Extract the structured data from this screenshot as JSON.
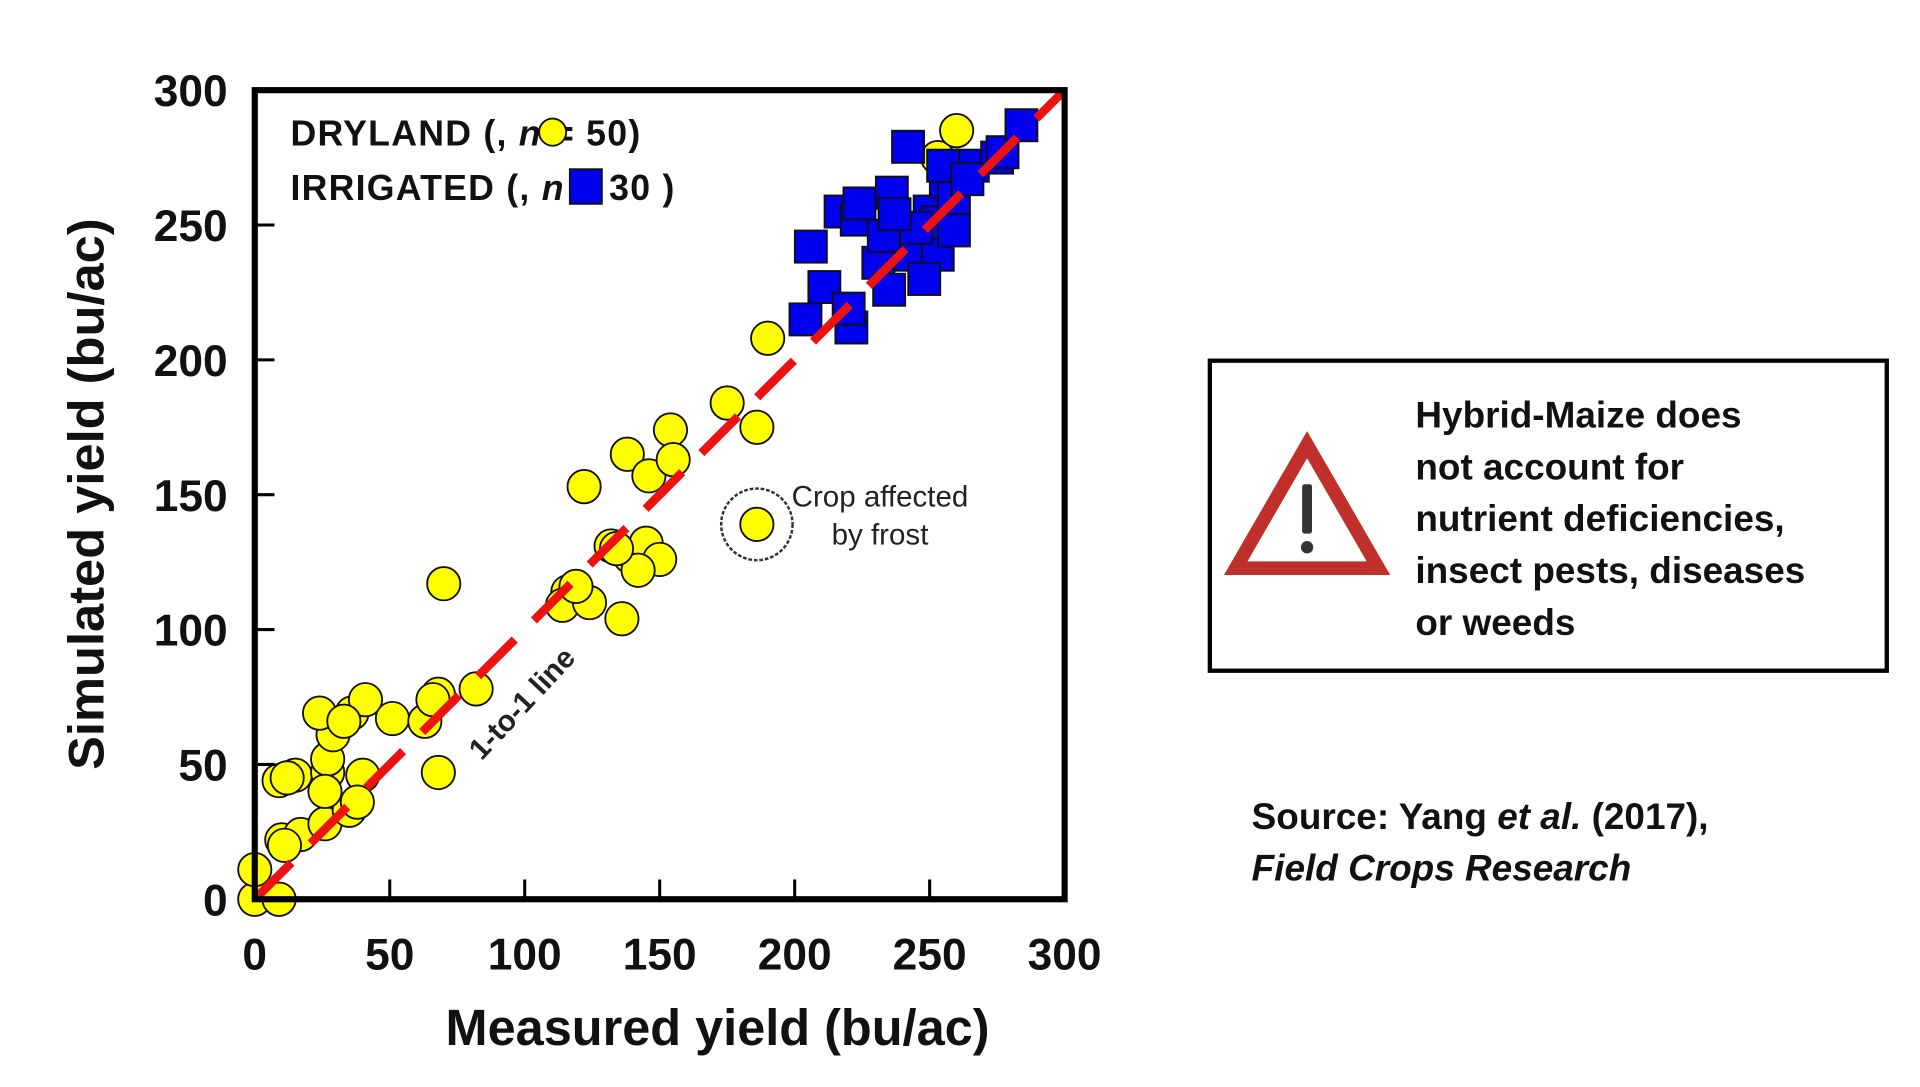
{
  "chart_data": {
    "type": "scatter",
    "xlabel": "Measured yield (bu/ac)",
    "ylabel": "Simulated yield (bu/ac)",
    "xlim": [
      0,
      300
    ],
    "ylim": [
      0,
      300
    ],
    "xticks": [
      "0",
      "50",
      "100",
      "150",
      "200",
      "250",
      "300"
    ],
    "yticks": [
      "0",
      "50",
      "100",
      "150",
      "200",
      "250",
      "300"
    ],
    "grid": false,
    "legend_position": "top-left",
    "legend": {
      "dryland": {
        "name": "DRYLAND",
        "n_label": "n",
        "n_value": "= 50)"
      },
      "irrigated": {
        "name": "IRRIGATED",
        "n_label": "n",
        "n_value": "= 30 )"
      }
    },
    "colors": {
      "dryland": "#ffff00",
      "irrigated": "#0000ee",
      "one_to_one": "#ee1111"
    },
    "one_to_one_label": "1-to-1 line",
    "annotation": {
      "line1": "Crop affected",
      "line2": "by frost",
      "x": 186,
      "y": 139
    },
    "series": [
      {
        "name": "DRYLAND",
        "marker": "circle",
        "points": [
          [
            0,
            0
          ],
          [
            9,
            0
          ],
          [
            0,
            11
          ],
          [
            10,
            22
          ],
          [
            17,
            24
          ],
          [
            26,
            28
          ],
          [
            35,
            33
          ],
          [
            9,
            44
          ],
          [
            15,
            46
          ],
          [
            27,
            47
          ],
          [
            27,
            52
          ],
          [
            40,
            46
          ],
          [
            29,
            61
          ],
          [
            24,
            69
          ],
          [
            36,
            69
          ],
          [
            41,
            74
          ],
          [
            51,
            67
          ],
          [
            63,
            66
          ],
          [
            68,
            76
          ],
          [
            82,
            78
          ],
          [
            68,
            47
          ],
          [
            70,
            117
          ],
          [
            116,
            114
          ],
          [
            114,
            109
          ],
          [
            124,
            110
          ],
          [
            136,
            104
          ],
          [
            132,
            131
          ],
          [
            139,
            127
          ],
          [
            145,
            132
          ],
          [
            150,
            126
          ],
          [
            122,
            153
          ],
          [
            138,
            165
          ],
          [
            146,
            157
          ],
          [
            154,
            174
          ],
          [
            155,
            163
          ],
          [
            175,
            184
          ],
          [
            186,
            175
          ],
          [
            190,
            208
          ],
          [
            186,
            139
          ],
          [
            253,
            275
          ],
          [
            260,
            285
          ],
          [
            11,
            20
          ],
          [
            38,
            36
          ],
          [
            26,
            40
          ],
          [
            119,
            116
          ],
          [
            142,
            122
          ],
          [
            66,
            74
          ],
          [
            33,
            66
          ],
          [
            12,
            45
          ],
          [
            134,
            130
          ]
        ]
      },
      {
        "name": "IRRIGATED",
        "marker": "square",
        "points": [
          [
            204,
            215
          ],
          [
            221,
            212
          ],
          [
            206,
            242
          ],
          [
            211,
            227
          ],
          [
            217,
            255
          ],
          [
            223,
            252
          ],
          [
            231,
            236
          ],
          [
            235,
            226
          ],
          [
            236,
            262
          ],
          [
            238,
            246
          ],
          [
            243,
            239
          ],
          [
            242,
            279
          ],
          [
            250,
            255
          ],
          [
            253,
            239
          ],
          [
            253,
            251
          ],
          [
            256,
            266
          ],
          [
            259,
            260
          ],
          [
            266,
            272
          ],
          [
            275,
            275
          ],
          [
            277,
            277
          ],
          [
            284,
            287
          ],
          [
            259,
            248
          ],
          [
            224,
            258
          ],
          [
            233,
            246
          ],
          [
            245,
            249
          ],
          [
            255,
            272
          ],
          [
            264,
            267
          ],
          [
            220,
            219
          ],
          [
            237,
            254
          ],
          [
            248,
            230
          ]
        ]
      }
    ]
  },
  "warning": {
    "icon": "warning-triangle-icon",
    "lines": [
      "Hybrid-Maize does",
      "not account for",
      "nutrient deficiencies,",
      "insect pests, diseases",
      "or weeds"
    ]
  },
  "source": {
    "prefix": "Source: Yang ",
    "italic": "et al.",
    "suffix": " (2017),",
    "journal": "Field Crops Research"
  }
}
